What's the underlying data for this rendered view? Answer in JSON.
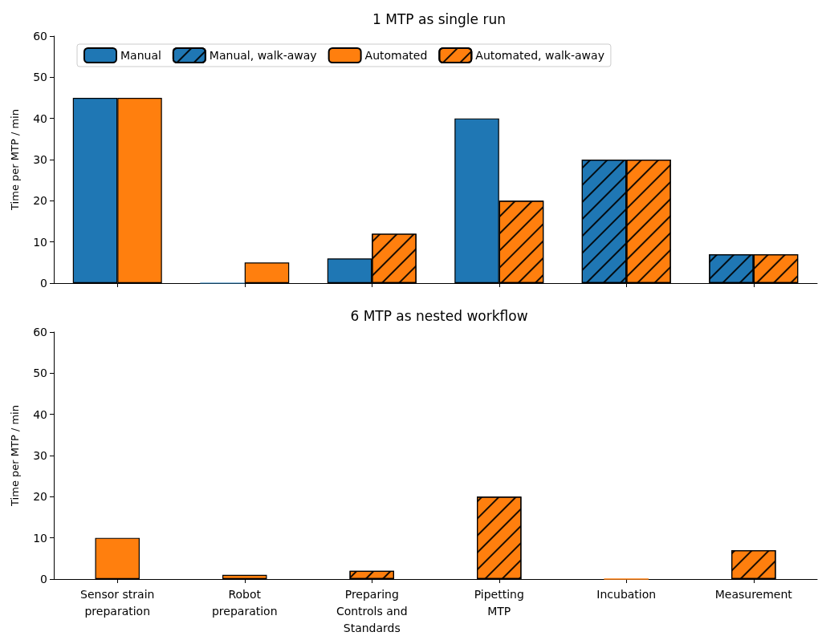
{
  "chart_data": [
    {
      "type": "bar",
      "title": "1 MTP as single run",
      "ylabel": "Time per MTP / min",
      "categories": [
        null,
        null,
        null,
        null,
        null,
        null
      ],
      "ylim": [
        0,
        60
      ],
      "yticks": [
        0,
        10,
        20,
        30,
        40,
        50,
        60
      ],
      "tick_labels": "y",
      "grid": false,
      "legend": "top",
      "series": [
        {
          "name": "Manual",
          "color": "#1f77b4",
          "values": [
            45,
            0,
            6,
            40,
            null,
            null
          ]
        },
        {
          "name": "Manual, walk-away",
          "color": "#1f77b4",
          "values": [
            null,
            null,
            null,
            null,
            30,
            7
          ]
        },
        {
          "name": "Automated",
          "color": "#ff7f0e",
          "values": [
            45,
            5,
            null,
            null,
            null,
            null
          ]
        },
        {
          "name": "Automated, walk-away",
          "color": "#ff7f0e",
          "values": [
            null,
            null,
            12,
            20,
            30,
            7
          ]
        }
      ]
    },
    {
      "type": "bar",
      "title": "6 MTP as nested workflow",
      "ylabel": "Time per MTP / min",
      "categories": [
        "Sensor strain\npreparation",
        "Robot\npreparation",
        "Preparing\nControls and\nStandards",
        "Pipetting\nMTP",
        "Incubation",
        "Measurement"
      ],
      "ylim": [
        0,
        60
      ],
      "yticks": [
        0,
        10,
        20,
        30,
        40,
        50,
        60
      ],
      "grid": false,
      "series": [
        {
          "color": "#ff7f0e",
          "values": [
            10,
            1,
            null,
            null,
            null,
            null
          ]
        },
        {
          "color": "#ff7f0e",
          "values": [
            null,
            null,
            2,
            20,
            0,
            7
          ]
        }
      ]
    }
  ]
}
